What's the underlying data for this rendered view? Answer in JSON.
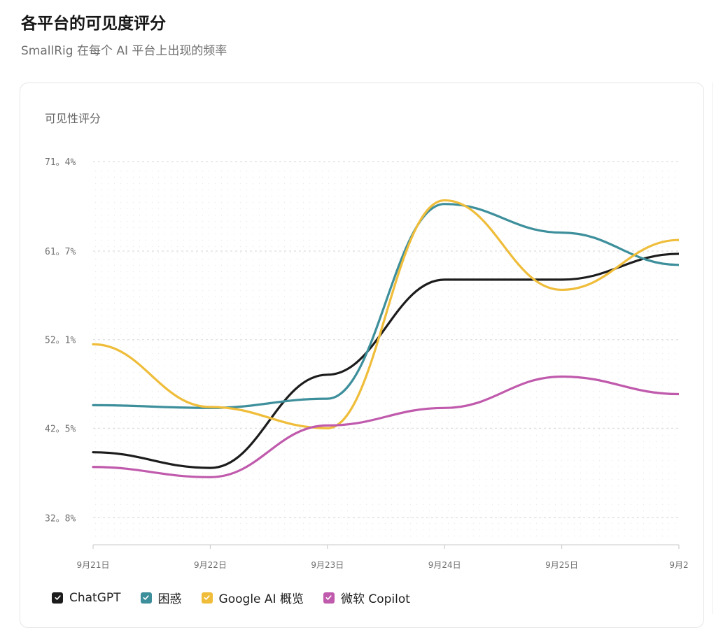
{
  "header": {
    "title": "各平台的可见度评分",
    "subtitle": "SmallRig 在每个 AI 平台上出现的频率"
  },
  "chart_data": {
    "type": "line",
    "ylabel": "可见性评分",
    "y_ticks": [
      "71。4%",
      "61。7%",
      "52。1%",
      "42。5%",
      "32。8%"
    ],
    "y_tick_values": [
      71.4,
      61.7,
      52.1,
      42.5,
      32.8
    ],
    "ylim": [
      30.2,
      71.4
    ],
    "categories": [
      "9月21日",
      "9月22日",
      "9月23日",
      "9月24日",
      "9月25日",
      "9月2"
    ],
    "grid": true,
    "legend_position": "bottom-left",
    "series": [
      {
        "name": "ChatGPT",
        "color": "#1c1c1c",
        "values": [
          39.9,
          38.2,
          48.3,
          58.6,
          58.6,
          61.4
        ]
      },
      {
        "name": "困惑",
        "color": "#3d8f9b",
        "values": [
          45.0,
          44.7,
          45.7,
          66.8,
          63.7,
          60.2
        ]
      },
      {
        "name": "Google AI 概览",
        "color": "#efbd3a",
        "values": [
          51.6,
          44.8,
          42.5,
          67.2,
          57.5,
          62.9
        ]
      },
      {
        "name": "微软 Copilot",
        "color": "#c05aac",
        "values": [
          38.3,
          37.2,
          42.8,
          44.7,
          48.1,
          46.2
        ]
      }
    ]
  },
  "legend": {
    "items": [
      "ChatGPT",
      "困惑",
      "Google AI 概览",
      "微软 Copilot"
    ]
  }
}
